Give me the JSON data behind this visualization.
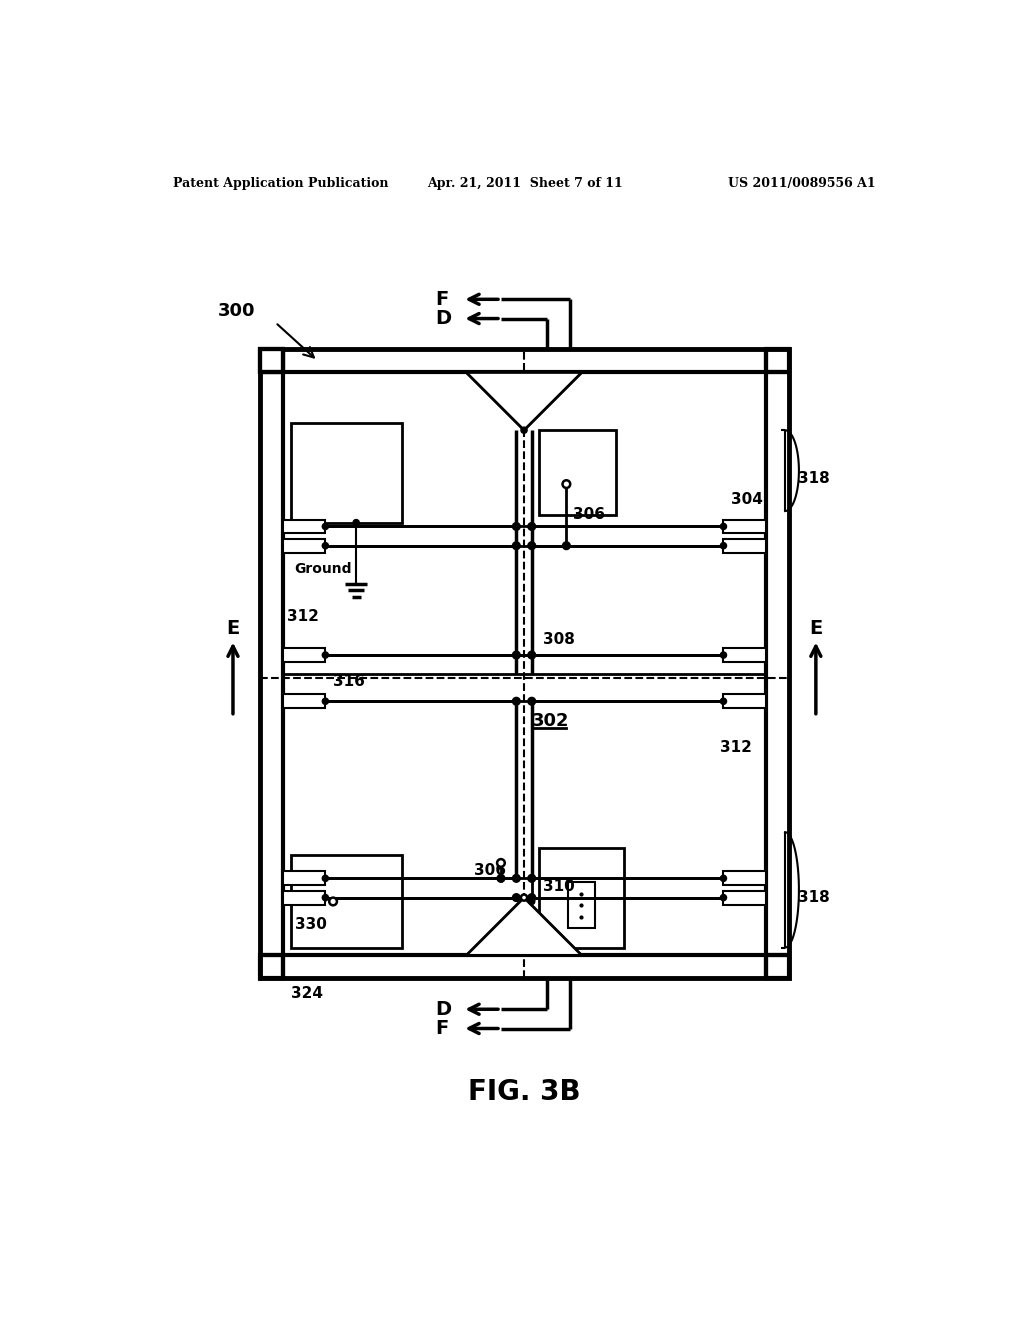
{
  "bg": "#ffffff",
  "lc": "#000000",
  "header_left": "Patent Application Publication",
  "header_mid": "Apr. 21, 2011  Sheet 7 of 11",
  "header_right": "US 2011/0089556 A1",
  "fig_label": "FIG. 3B",
  "lw_outer": 3.5,
  "lw_rail": 3.0,
  "lw_med": 2.0,
  "lw_thin": 1.5,
  "dot_r": 5,
  "odot_r": 5
}
